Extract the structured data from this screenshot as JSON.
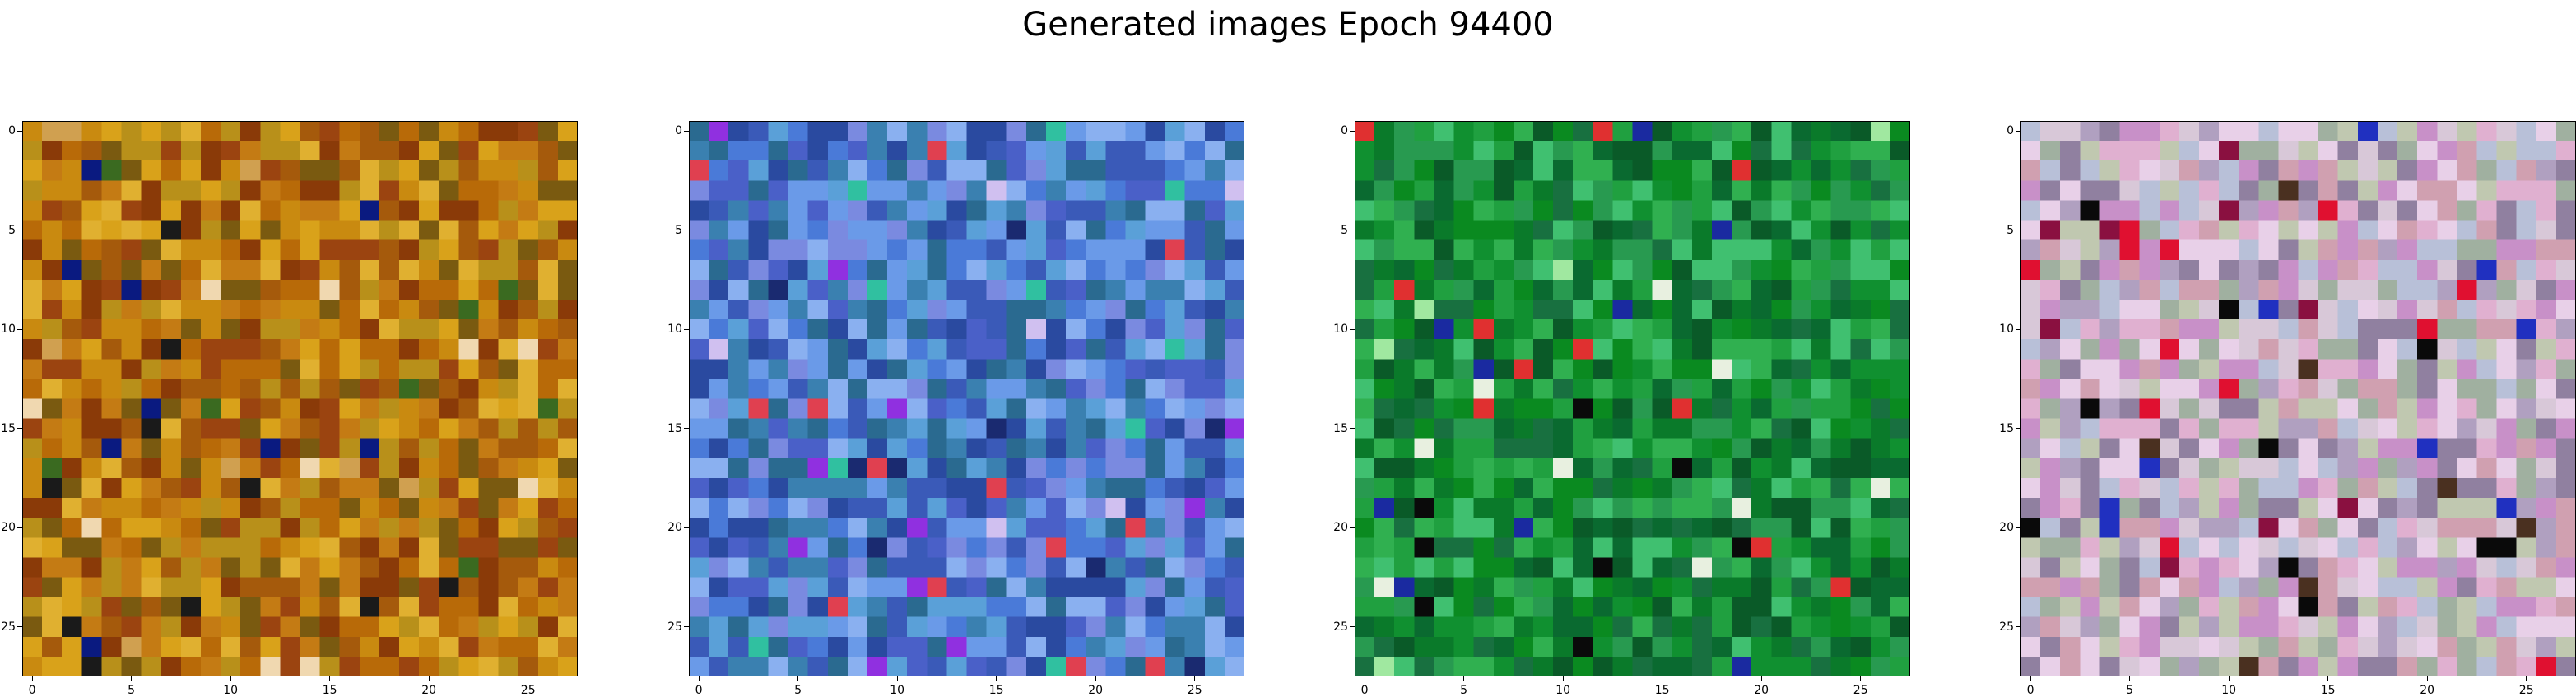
{
  "figure": {
    "title": "Generated images Epoch 94400"
  },
  "chart_data": [
    {
      "type": "heatmap",
      "grid_size": [
        28,
        28
      ],
      "xticks": [
        0,
        5,
        10,
        15,
        20,
        25
      ],
      "yticks": [
        0,
        5,
        10,
        15,
        20,
        25
      ],
      "xlim": [
        -0.5,
        27.5
      ],
      "ylim": [
        27.5,
        -0.5
      ],
      "palette": [
        "#c98a10",
        "#b86a08",
        "#a55a0c",
        "#d9a21a",
        "#8a3a08",
        "#c47b14",
        "#7a5a10",
        "#e0b030",
        "#9b4410",
        "#b8901a"
      ],
      "accent_colors": [
        "#0a1a80",
        "#f0d8b0",
        "#1a1a1a",
        "#3a6a20",
        "#d0a050"
      ]
    },
    {
      "type": "heatmap",
      "grid_size": [
        28,
        28
      ],
      "xticks": [
        0,
        5,
        10,
        15,
        20,
        25
      ],
      "yticks": [
        0,
        5,
        10,
        15,
        20,
        25
      ],
      "xlim": [
        -0.5,
        27.5
      ],
      "ylim": [
        27.5,
        -0.5
      ],
      "palette": [
        "#4a7ad8",
        "#3a5ab8",
        "#6a9ae8",
        "#2a4aa0",
        "#5aa0d8",
        "#3a80b0",
        "#7a8ae0",
        "#2a6a90",
        "#8ab0f0",
        "#4a60c8"
      ],
      "accent_colors": [
        "#e04050",
        "#d0c0f0",
        "#1a2a70",
        "#30c0a0",
        "#9030e0"
      ]
    },
    {
      "type": "heatmap",
      "grid_size": [
        28,
        28
      ],
      "xticks": [
        0,
        5,
        10,
        15,
        20,
        25
      ],
      "yticks": [
        0,
        5,
        10,
        15,
        20,
        25
      ],
      "xlim": [
        -0.5,
        27.5
      ],
      "ylim": [
        27.5,
        -0.5
      ],
      "palette": [
        "#109030",
        "#0a7a2a",
        "#20a040",
        "#0a6a30",
        "#30b050",
        "#187040",
        "#40c070",
        "#0a8a20",
        "#289a50",
        "#0a5a28"
      ],
      "accent_colors": [
        "#e8f0e0",
        "#e03030",
        "#1a2aa0",
        "#0a0a0a",
        "#a0e8a0"
      ]
    },
    {
      "type": "heatmap",
      "grid_size": [
        28,
        28
      ],
      "xticks": [
        0,
        5,
        10,
        15,
        20,
        25
      ],
      "yticks": [
        0,
        5,
        10,
        15,
        20,
        25
      ],
      "xlim": [
        -0.5,
        27.5
      ],
      "ylim": [
        27.5,
        -0.5
      ],
      "palette": [
        "#e0b0d0",
        "#c890c8",
        "#b0a0c0",
        "#d8c8d8",
        "#a0b0a0",
        "#c0c8b0",
        "#e8d0e8",
        "#9080a0",
        "#d0a0b0",
        "#b8c0d8"
      ],
      "accent_colors": [
        "#0a0a0a",
        "#e01030",
        "#8a1040",
        "#4a3020",
        "#2030c0"
      ]
    }
  ]
}
